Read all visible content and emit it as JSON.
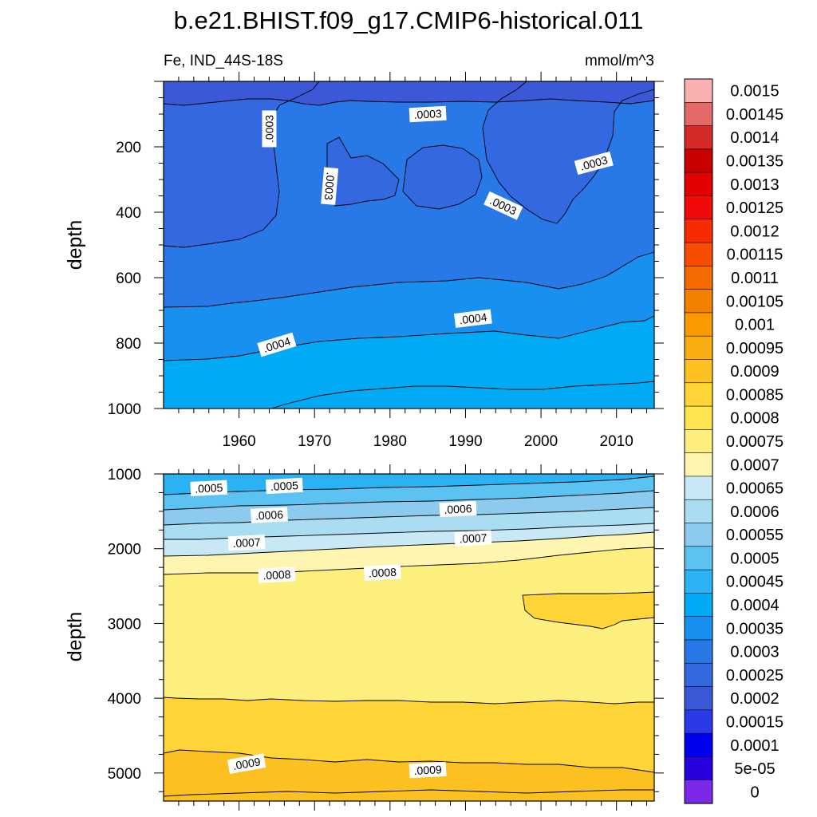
{
  "title": "b.e21.BHIST.f09_g17.CMIP6-historical.011",
  "variable_label": "Fe, IND_44S-18S",
  "units_label": "mmol/m^3",
  "colorbar": {
    "labels": [
      "0.0015",
      "0.00145",
      "0.0014",
      "0.00135",
      "0.0013",
      "0.00125",
      "0.0012",
      "0.00115",
      "0.0011",
      "0.00105",
      "0.001",
      "0.00095",
      "0.0009",
      "0.00085",
      "0.0008",
      "0.00075",
      "0.0007",
      "0.00065",
      "0.0006",
      "0.00055",
      "0.0005",
      "0.00045",
      "0.0004",
      "0.00035",
      "0.0003",
      "0.00025",
      "0.0002",
      "0.00015",
      "0.0001",
      "5e-05",
      "0"
    ],
    "colors": [
      "#f8b0b0",
      "#e46a6a",
      "#d42a2a",
      "#c80000",
      "#e20000",
      "#f00a0a",
      "#f82a00",
      "#f84c00",
      "#f26a00",
      "#f48000",
      "#f89a00",
      "#f8ae10",
      "#fcc020",
      "#fed436",
      "#fde450",
      "#fdef7e",
      "#fef6b0",
      "#c8e8f6",
      "#aadcf2",
      "#8ccaee",
      "#5cc2f2",
      "#2ab2f4",
      "#00aaf4",
      "#1890f0",
      "#2878e8",
      "#3468e0",
      "#3a58d8",
      "#2a3ae8",
      "#0000f0",
      "#2800e0",
      "#7c28e8"
    ]
  },
  "chart_data": [
    {
      "type": "contour",
      "panel": "upper",
      "xlabel": "",
      "ylabel": "depth",
      "xlim": [
        1950,
        2015
      ],
      "ylim": [
        1000,
        0
      ],
      "x_ticks": [
        1960,
        1970,
        1980,
        1990,
        2000,
        2010
      ],
      "x_tick_labels": [
        "1960",
        "1970",
        "1980",
        "1990",
        "2000",
        "2010"
      ],
      "y_ticks": [
        200,
        400,
        600,
        800,
        1000
      ],
      "y_tick_labels": [
        "200",
        "400",
        "600",
        "800",
        "1000"
      ],
      "contour_labels": [
        {
          "text": ".0003",
          "x": 1964,
          "y": 145,
          "angle": -90
        },
        {
          "text": ".0003",
          "x": 1985,
          "y": 100,
          "angle": -3
        },
        {
          "text": ".0003",
          "x": 1972,
          "y": 320,
          "angle": 95
        },
        {
          "text": ".0003",
          "x": 2007,
          "y": 250,
          "angle": -15
        },
        {
          "text": ".0003",
          "x": 1995,
          "y": 380,
          "angle": 25
        },
        {
          "text": ".0004",
          "x": 1965,
          "y": 805,
          "angle": -17
        },
        {
          "text": ".0004",
          "x": 1991,
          "y": 725,
          "angle": -7
        }
      ]
    },
    {
      "type": "contour",
      "panel": "lower",
      "xlabel": "",
      "ylabel": "depth",
      "xlim": [
        1950,
        2015
      ],
      "ylim": [
        5375,
        1000
      ],
      "y_ticks": [
        1000,
        2000,
        3000,
        4000,
        5000
      ],
      "y_tick_labels": [
        "1000",
        "2000",
        "3000",
        "4000",
        "5000"
      ],
      "contour_labels": [
        {
          "text": ".0005",
          "x": 1956,
          "y": 1190,
          "angle": -3
        },
        {
          "text": ".0005",
          "x": 1966,
          "y": 1160,
          "angle": -3
        },
        {
          "text": ".0006",
          "x": 1964,
          "y": 1550,
          "angle": -3
        },
        {
          "text": ".0006",
          "x": 1989,
          "y": 1470,
          "angle": -3
        },
        {
          "text": ".0007",
          "x": 1961,
          "y": 1920,
          "angle": -3
        },
        {
          "text": ".0007",
          "x": 1991,
          "y": 1860,
          "angle": -3
        },
        {
          "text": ".0008",
          "x": 1965,
          "y": 2350,
          "angle": -3
        },
        {
          "text": ".0008",
          "x": 1979,
          "y": 2320,
          "angle": -3
        },
        {
          "text": ".0009",
          "x": 1961,
          "y": 4875,
          "angle": -10
        },
        {
          "text": ".0009",
          "x": 1985,
          "y": 4960,
          "angle": -3
        }
      ]
    }
  ]
}
